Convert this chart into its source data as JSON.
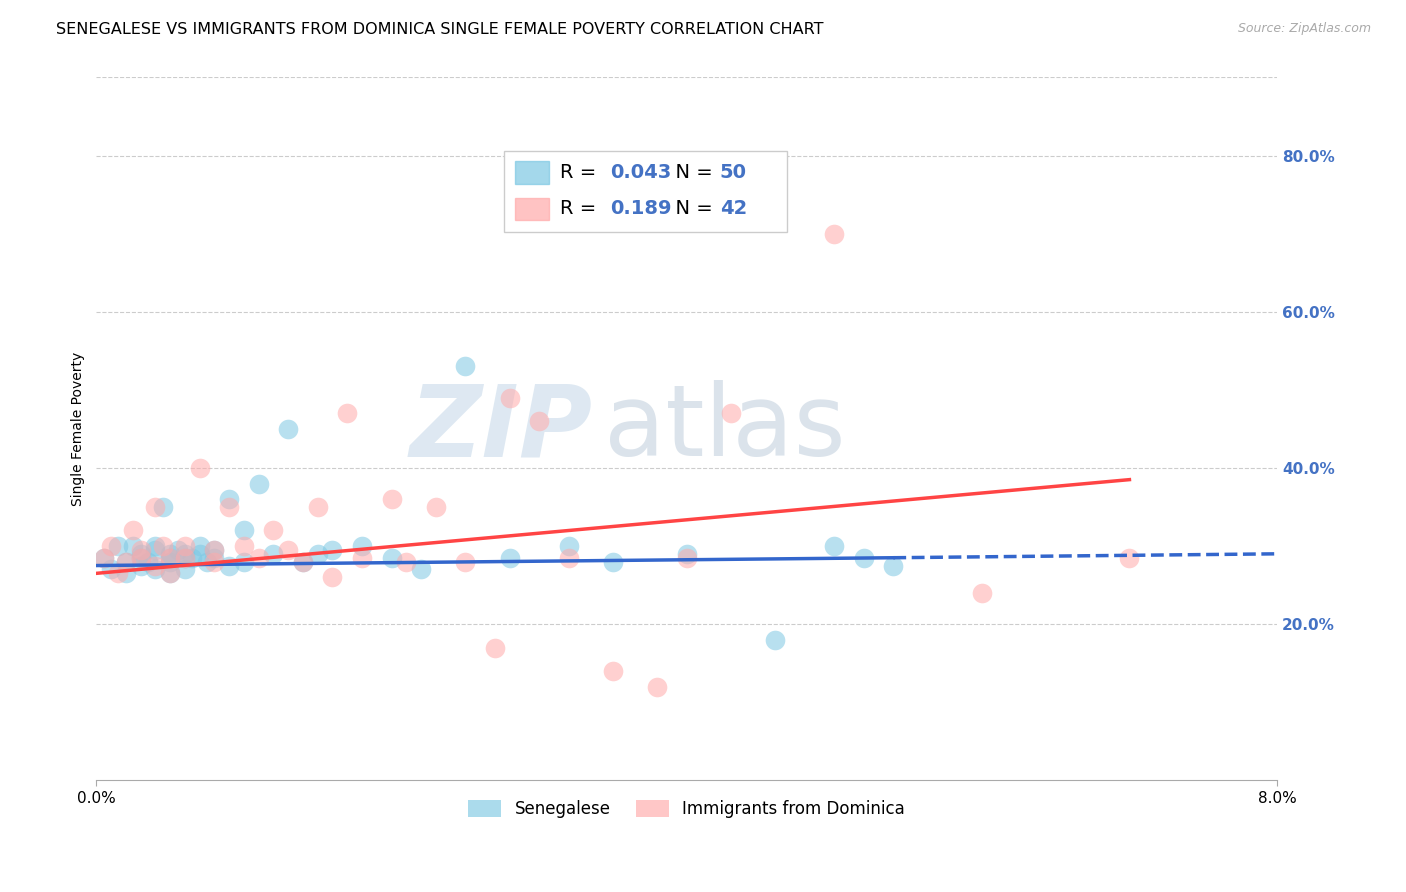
{
  "title": "SENEGALESE VS IMMIGRANTS FROM DOMINICA SINGLE FEMALE POVERTY CORRELATION CHART",
  "source": "Source: ZipAtlas.com",
  "ylabel": "Single Female Poverty",
  "ytick_labels": [
    "20.0%",
    "40.0%",
    "60.0%",
    "80.0%"
  ],
  "ytick_values": [
    0.2,
    0.4,
    0.6,
    0.8
  ],
  "xlim": [
    0.0,
    0.08
  ],
  "ylim": [
    0.0,
    0.9
  ],
  "legend_label1": "Senegalese",
  "legend_label2": "Immigrants from Dominica",
  "R1": "0.043",
  "N1": "50",
  "R2": "0.189",
  "N2": "42",
  "color1": "#7ec8e3",
  "color2": "#ffaaaa",
  "trendline_color1": "#3366cc",
  "trendline_color2": "#ff4444",
  "watermark_zip": "ZIP",
  "watermark_atlas": "atlas",
  "title_fontsize": 11.5,
  "axis_label_fontsize": 10,
  "tick_fontsize": 11,
  "legend_fontsize": 14,
  "senegalese_x": [
    0.0005,
    0.001,
    0.0015,
    0.002,
    0.002,
    0.0025,
    0.003,
    0.003,
    0.003,
    0.0035,
    0.004,
    0.004,
    0.004,
    0.0045,
    0.005,
    0.005,
    0.005,
    0.005,
    0.0055,
    0.006,
    0.006,
    0.006,
    0.0065,
    0.007,
    0.007,
    0.0075,
    0.008,
    0.008,
    0.009,
    0.009,
    0.01,
    0.01,
    0.011,
    0.012,
    0.013,
    0.014,
    0.015,
    0.016,
    0.018,
    0.02,
    0.022,
    0.025,
    0.028,
    0.032,
    0.035,
    0.04,
    0.046,
    0.05,
    0.052,
    0.054
  ],
  "senegalese_y": [
    0.285,
    0.27,
    0.3,
    0.265,
    0.28,
    0.3,
    0.29,
    0.285,
    0.275,
    0.28,
    0.27,
    0.3,
    0.295,
    0.35,
    0.29,
    0.285,
    0.265,
    0.28,
    0.295,
    0.27,
    0.285,
    0.29,
    0.285,
    0.3,
    0.29,
    0.28,
    0.295,
    0.285,
    0.275,
    0.36,
    0.32,
    0.28,
    0.38,
    0.29,
    0.45,
    0.28,
    0.29,
    0.295,
    0.3,
    0.285,
    0.27,
    0.53,
    0.285,
    0.3,
    0.28,
    0.29,
    0.18,
    0.3,
    0.285,
    0.275
  ],
  "dominica_x": [
    0.0005,
    0.001,
    0.0015,
    0.002,
    0.0025,
    0.003,
    0.003,
    0.004,
    0.004,
    0.0045,
    0.005,
    0.005,
    0.006,
    0.006,
    0.007,
    0.008,
    0.008,
    0.009,
    0.01,
    0.011,
    0.012,
    0.013,
    0.014,
    0.015,
    0.016,
    0.017,
    0.018,
    0.02,
    0.021,
    0.023,
    0.025,
    0.027,
    0.028,
    0.03,
    0.032,
    0.035,
    0.038,
    0.04,
    0.043,
    0.05,
    0.06,
    0.07
  ],
  "dominica_y": [
    0.285,
    0.3,
    0.265,
    0.28,
    0.32,
    0.285,
    0.295,
    0.35,
    0.275,
    0.3,
    0.285,
    0.265,
    0.3,
    0.285,
    0.4,
    0.28,
    0.295,
    0.35,
    0.3,
    0.285,
    0.32,
    0.295,
    0.28,
    0.35,
    0.26,
    0.47,
    0.285,
    0.36,
    0.28,
    0.35,
    0.28,
    0.17,
    0.49,
    0.46,
    0.285,
    0.14,
    0.12,
    0.285,
    0.47,
    0.7,
    0.24,
    0.285
  ],
  "trend1_x0": 0.0,
  "trend1_y0": 0.275,
  "trend1_x1": 0.054,
  "trend1_y1": 0.285,
  "trend1_dash_x0": 0.054,
  "trend1_dash_y0": 0.285,
  "trend1_dash_x1": 0.08,
  "trend1_dash_y1": 0.29,
  "trend2_x0": 0.0,
  "trend2_y0": 0.265,
  "trend2_x1": 0.07,
  "trend2_y1": 0.385
}
